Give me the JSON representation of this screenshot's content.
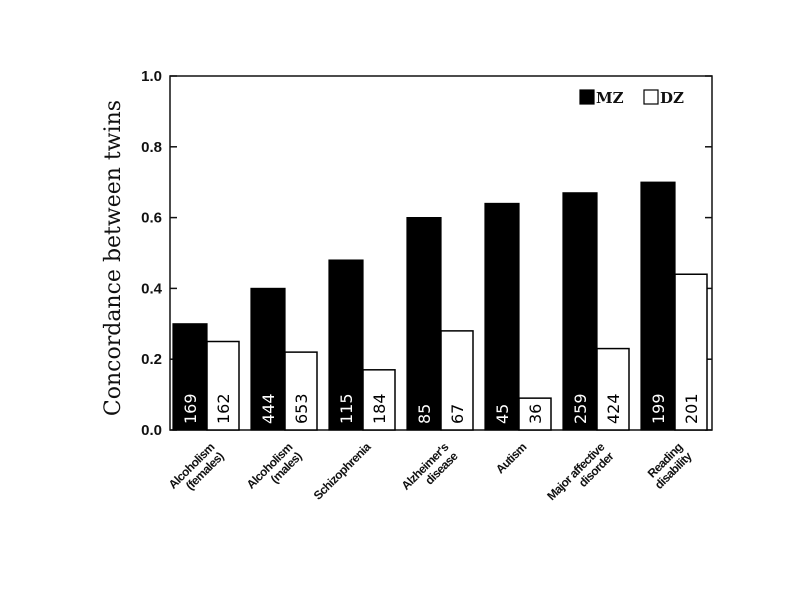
{
  "chart_data": {
    "type": "bar",
    "ylabel": "Concordance between twins",
    "ylim": [
      0,
      1.0
    ],
    "yticks": [
      "0.0",
      "0.2",
      "0.4",
      "0.6",
      "0.8",
      "1.0"
    ],
    "ytick_values": [
      0,
      0.2,
      0.4,
      0.6,
      0.8,
      1.0
    ],
    "grid": false,
    "legend_position": "top-right",
    "categories": [
      [
        "Alcoholism",
        "(females)"
      ],
      [
        "Alcoholism",
        "(males)"
      ],
      [
        "Schizophrenia"
      ],
      [
        "Alzheimer's",
        "disease"
      ],
      [
        "Autism"
      ],
      [
        "Major affective",
        "disorder"
      ],
      [
        "Reading",
        "disability"
      ]
    ],
    "series": [
      {
        "name": "MZ",
        "color": "#000000",
        "values": [
          0.3,
          0.4,
          0.48,
          0.6,
          0.64,
          0.67,
          0.7
        ],
        "n": [
          "169",
          "444",
          "115",
          "85",
          "45",
          "259",
          "199"
        ]
      },
      {
        "name": "DZ",
        "color": "#ffffff",
        "values": [
          0.25,
          0.22,
          0.17,
          0.28,
          0.09,
          0.23,
          0.44
        ],
        "n": [
          "162",
          "653",
          "184",
          "67",
          "36",
          "424",
          "201"
        ]
      }
    ]
  }
}
